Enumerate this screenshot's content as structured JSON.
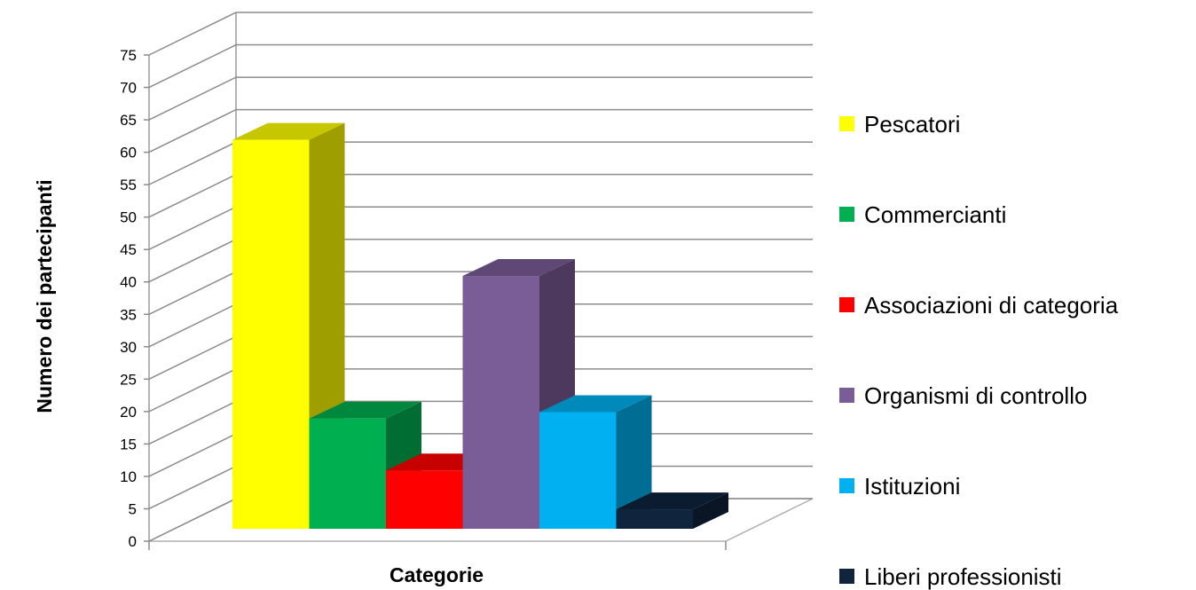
{
  "chart_data": {
    "type": "bar",
    "style": "3d-clustered-column",
    "title": "",
    "xlabel": "Categorie",
    "ylabel": "Numero dei partecipanti",
    "ylim": [
      0,
      75
    ],
    "y_ticks": [
      0,
      5,
      10,
      15,
      20,
      25,
      30,
      35,
      40,
      45,
      50,
      55,
      60,
      65,
      70,
      75
    ],
    "grid": true,
    "legend_position": "right",
    "series": [
      {
        "name": "Pescatori",
        "value": 60,
        "color": "#FFFF00"
      },
      {
        "name": "Commercianti",
        "value": 17,
        "color": "#00B050"
      },
      {
        "name": "Associazioni di categoria",
        "value": 9,
        "color": "#FF0000"
      },
      {
        "name": "Organismi di controllo",
        "value": 39,
        "color": "#7A5C96"
      },
      {
        "name": "Istituzioni",
        "value": 18,
        "color": "#00B0F0"
      },
      {
        "name": "Liberi professionisti",
        "value": 3,
        "color": "#10243E"
      }
    ]
  }
}
